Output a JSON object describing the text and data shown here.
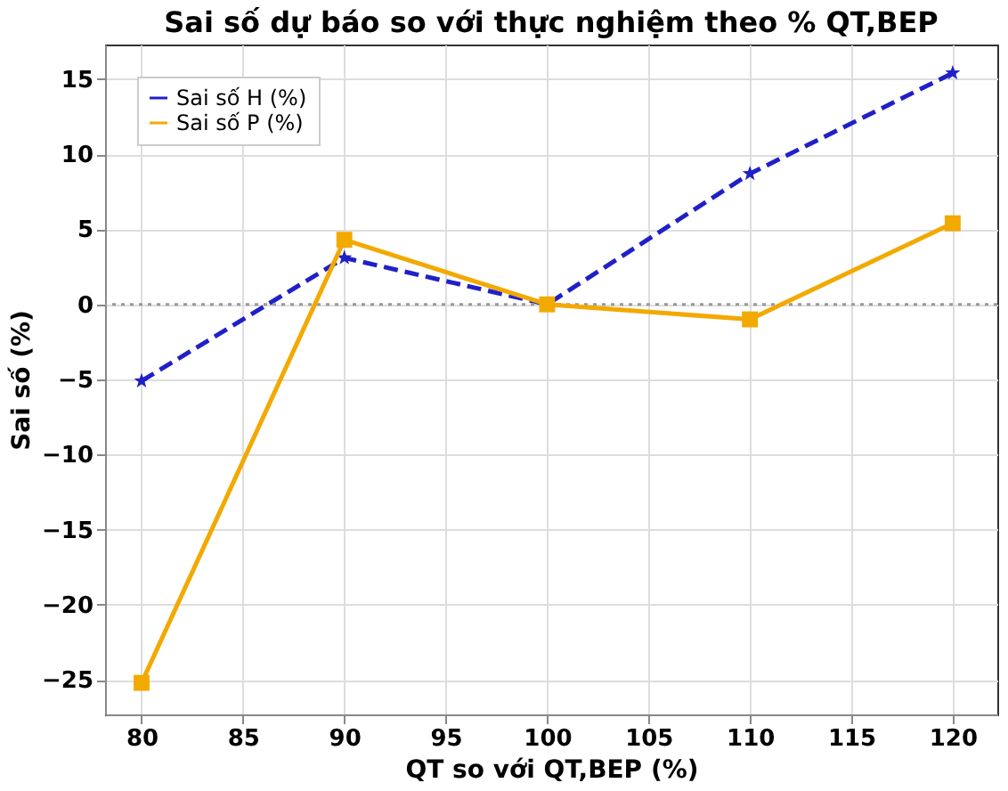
{
  "chart_data": {
    "type": "line",
    "title": "Sai số dự báo so với thực nghiệm theo % QT,BEP",
    "xlabel": "QT so với QT,BEP (%)",
    "ylabel": "Sai số (%)",
    "x": [
      80,
      90,
      100,
      110,
      120
    ],
    "series": [
      {
        "name": "Sai số H (%)",
        "color": "#2020c8",
        "values": [
          -5.1,
          3.1,
          0,
          8.7,
          15.4
        ],
        "marker": "star",
        "line_style": "dashed"
      },
      {
        "name": "Sai số P (%)",
        "color": "#f2a900",
        "values": [
          -25.2,
          4.3,
          0,
          -1.0,
          5.4
        ],
        "marker": "square",
        "line_style": "solid"
      }
    ],
    "xlim": [
      78.2,
      122.2
    ],
    "xticks": [
      80,
      85,
      90,
      95,
      100,
      105,
      110,
      115,
      120
    ],
    "ylim": [
      -27.3,
      17.3
    ],
    "yticks": [
      -25,
      -20,
      -15,
      -10,
      -5,
      0,
      5,
      10,
      15
    ],
    "ref_lines": [
      {
        "axis": "y",
        "value": 0,
        "label": null,
        "color": "#999999",
        "line_style": "dotted"
      }
    ],
    "grid": true,
    "legend": "top left"
  }
}
